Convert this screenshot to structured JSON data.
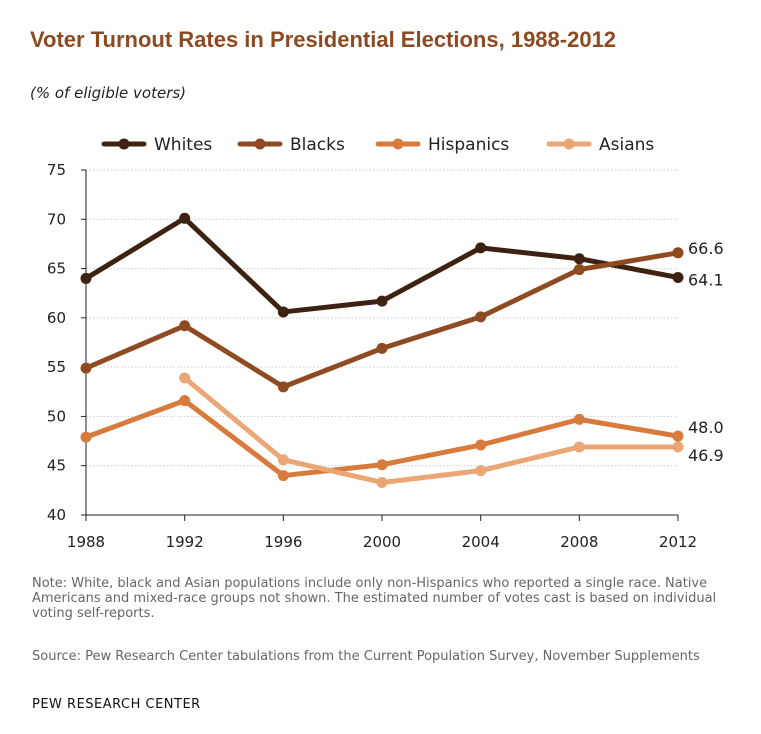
{
  "chart_data": {
    "type": "line",
    "title": "Voter Turnout Rates in Presidential Elections, 1988-2012",
    "subtitle": "(% of eligible voters)",
    "x": [
      "1988",
      "1992",
      "1996",
      "2000",
      "2004",
      "2008",
      "2012"
    ],
    "ylim": [
      40,
      75
    ],
    "yticks": [
      40,
      45,
      50,
      55,
      60,
      65,
      70,
      75
    ],
    "grid": true,
    "legend": "top",
    "series": [
      {
        "name": "Whites",
        "color": "#3d2212",
        "values": [
          64.0,
          70.1,
          60.6,
          61.7,
          67.1,
          66.0,
          64.1
        ]
      },
      {
        "name": "Blacks",
        "color": "#8e4b22",
        "values": [
          54.9,
          59.2,
          53.0,
          56.9,
          60.1,
          64.9,
          66.6
        ]
      },
      {
        "name": "Hispanics",
        "color": "#d87a3c",
        "values": [
          47.9,
          51.6,
          44.0,
          45.1,
          47.1,
          49.7,
          48.0
        ]
      },
      {
        "name": "Asians",
        "color": "#eba676",
        "values": [
          null,
          53.9,
          45.6,
          43.3,
          44.5,
          46.9,
          46.9
        ]
      }
    ],
    "end_labels": [
      {
        "series": "Blacks",
        "text": "66.6"
      },
      {
        "series": "Whites",
        "text": "64.1"
      },
      {
        "series": "Hispanics",
        "text": "48.0"
      },
      {
        "series": "Asians",
        "text": "46.9"
      }
    ]
  },
  "note": "Note:  White, black and Asian populations include only non-Hispanics who reported a single race. Native Americans and mixed-race groups not shown. The estimated number of votes cast is based on individual voting self-reports.",
  "source": "Source: Pew Research Center tabulations from the Current Population Survey, November Supplements",
  "brand": "PEW RESEARCH  CENTER",
  "colors": {
    "title": "#8c4a22",
    "grid": "#cccccc",
    "axis": "#222222"
  }
}
